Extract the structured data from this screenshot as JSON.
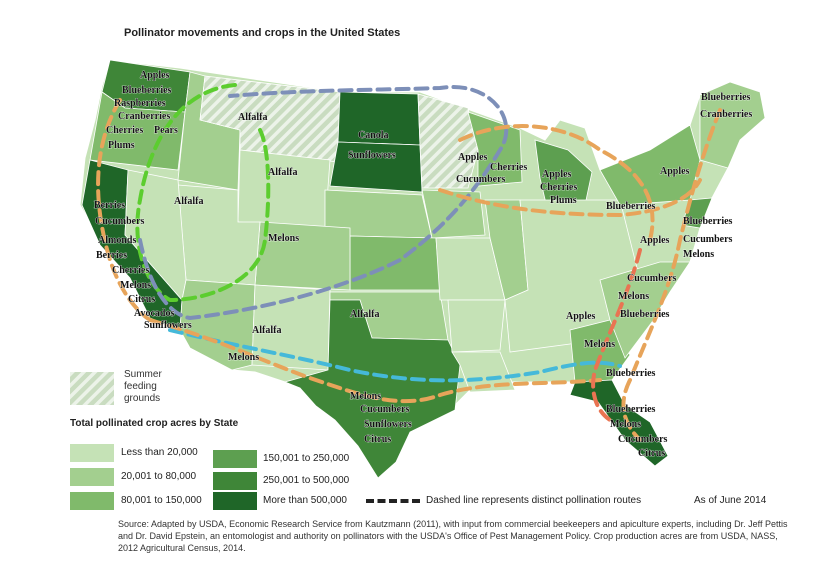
{
  "title": "Pollinator movements and crops in the United States",
  "summer_label": [
    "Summer",
    "feeding",
    "grounds"
  ],
  "legend": {
    "title": "Total pollinated crop acres by State",
    "items": [
      {
        "label": "Less than 20,000",
        "color": "#c5e2b6"
      },
      {
        "label": "20,001 to 80,000",
        "color": "#a3cf8f"
      },
      {
        "label": "80,001 to 150,000",
        "color": "#80ba6b"
      },
      {
        "label": "150,001 to 250,000",
        "color": "#5d9f50"
      },
      {
        "label": "250,001 to 500,000",
        "color": "#3f8638"
      },
      {
        "label": "More than 500,000",
        "color": "#1f6628"
      }
    ]
  },
  "route_legend": "Dashed line represents distinct pollination routes",
  "as_of": "As of June 2014",
  "source": "Source: Adapted by USDA, Economic Research Service from Kautzmann (2011), with input from commercial beekeepers and apiculture experts, including Dr. Jeff Pettis and Dr. David Epstein, an entomologist and authority on pollinators with the USDA's Office of Pest Management Policy. Crop production acres are from USDA, NASS, 2012 Agricultural Census, 2014.",
  "route_colors": [
    "#5ccd2f",
    "#7d8fb8",
    "#e7a45a",
    "#45b9d9",
    "#e97452"
  ],
  "crop_labels": [
    "Apples",
    "Blueberries",
    "Raspberries",
    "Cranberries",
    "Cherries",
    "Pears",
    "Plums",
    "Alfalfa",
    "Canola",
    "Sunflowers",
    "Alfalfa",
    "Apples",
    "Cucumbers",
    "Cherries",
    "Apples",
    "Cherries",
    "Plums",
    "Blueberries",
    "Cranberries",
    "Apples",
    "Blueberries",
    "Blueberries",
    "Apples",
    "Cucumbers",
    "Melons",
    "Berries",
    "Cucumbers",
    "Almonds",
    "Berries",
    "Cherries",
    "Melons",
    "Citrus",
    "Avocados",
    "Sunflowers",
    "Alfalfa",
    "Melons",
    "Alfalfa",
    "Melons",
    "Alfalfa",
    "Cucumbers",
    "Melons",
    "Apples",
    "Blueberries",
    "Melons",
    "Blueberries",
    "Melons",
    "Cucumbers",
    "Sunflowers",
    "Citrus",
    "Blueberries",
    "Melons",
    "Cucumbers",
    "Citrus"
  ]
}
